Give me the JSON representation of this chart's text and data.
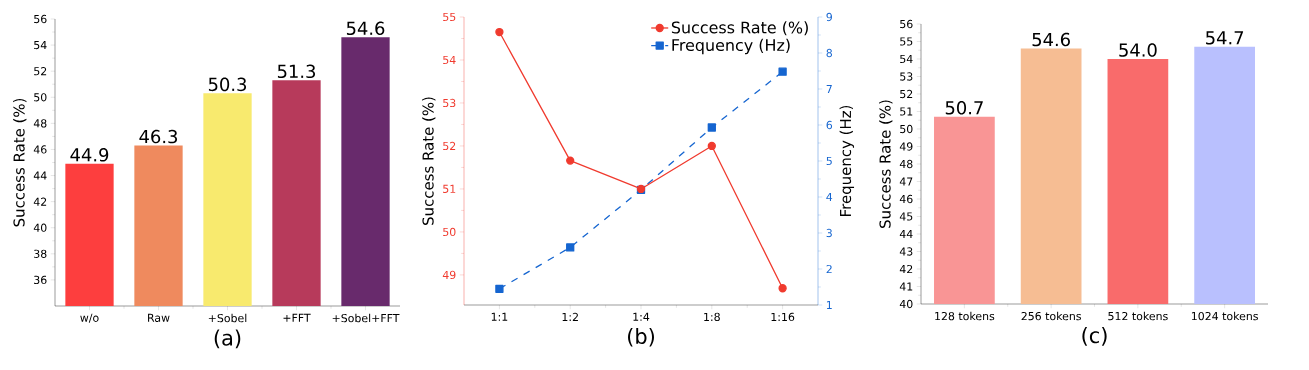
{
  "chart_data": [
    {
      "type": "bar",
      "xlabel": "(a)",
      "ylabel": "Success Rate (%)",
      "categories": [
        "w/o",
        "Raw",
        "+Sobel",
        "+FFT",
        "+Sobel+FFT"
      ],
      "values": [
        44.9,
        46.3,
        50.3,
        51.3,
        54.6
      ],
      "value_labels": [
        "44.9",
        "46.3",
        "50.3",
        "51.3",
        "54.6"
      ],
      "colors": [
        "#fd3e3e",
        "#ef8a5e",
        "#f8ea6e",
        "#b73a5b",
        "#682a6c"
      ],
      "ylim": [
        34,
        56
      ],
      "yticks": [
        36,
        38,
        40,
        42,
        44,
        46,
        48,
        50,
        52,
        54,
        56
      ]
    },
    {
      "type": "line",
      "xlabel": "(b)",
      "ylabel": "Success Rate (%)",
      "y2label": "Frequency (Hz)",
      "categories": [
        "1:1",
        "1:2",
        "1:4",
        "1:8",
        "1:16"
      ],
      "series": [
        {
          "name": "Success Rate (%)",
          "color": "#f03a2e",
          "values": [
            54.65,
            51.66,
            51.0,
            52.0,
            48.69
          ],
          "marker": "circle",
          "line_style": "solid"
        },
        {
          "name": "Frequency (Hz)",
          "color": "#1565d0",
          "values": [
            1.45,
            2.6,
            4.2,
            5.93,
            7.48
          ],
          "axis": "y2",
          "marker": "square",
          "line_style": "dashed"
        }
      ],
      "ylim": [
        48.3,
        55
      ],
      "yticks": [
        49,
        50,
        51,
        52,
        53,
        54,
        55
      ],
      "y2lim": [
        1,
        9
      ],
      "y2ticks": [
        1,
        2,
        3,
        4,
        5,
        6,
        7,
        8,
        9
      ],
      "legend": "top right"
    },
    {
      "type": "bar",
      "xlabel": "(c)",
      "ylabel": "Success Rate (%)",
      "categories": [
        "128 tokens",
        "256 tokens",
        "512 tokens",
        "1024 tokens"
      ],
      "values": [
        50.7,
        54.6,
        54.0,
        54.7
      ],
      "value_labels": [
        "50.7",
        "54.6",
        "54.0",
        "54.7"
      ],
      "colors": [
        "#f99595",
        "#f6bd93",
        "#f96b6b",
        "#b9c0fe"
      ],
      "ylim": [
        40,
        56
      ],
      "yticks": [
        40,
        41,
        42,
        43,
        44,
        45,
        46,
        47,
        48,
        49,
        50,
        51,
        52,
        53,
        54,
        55,
        56
      ]
    }
  ]
}
